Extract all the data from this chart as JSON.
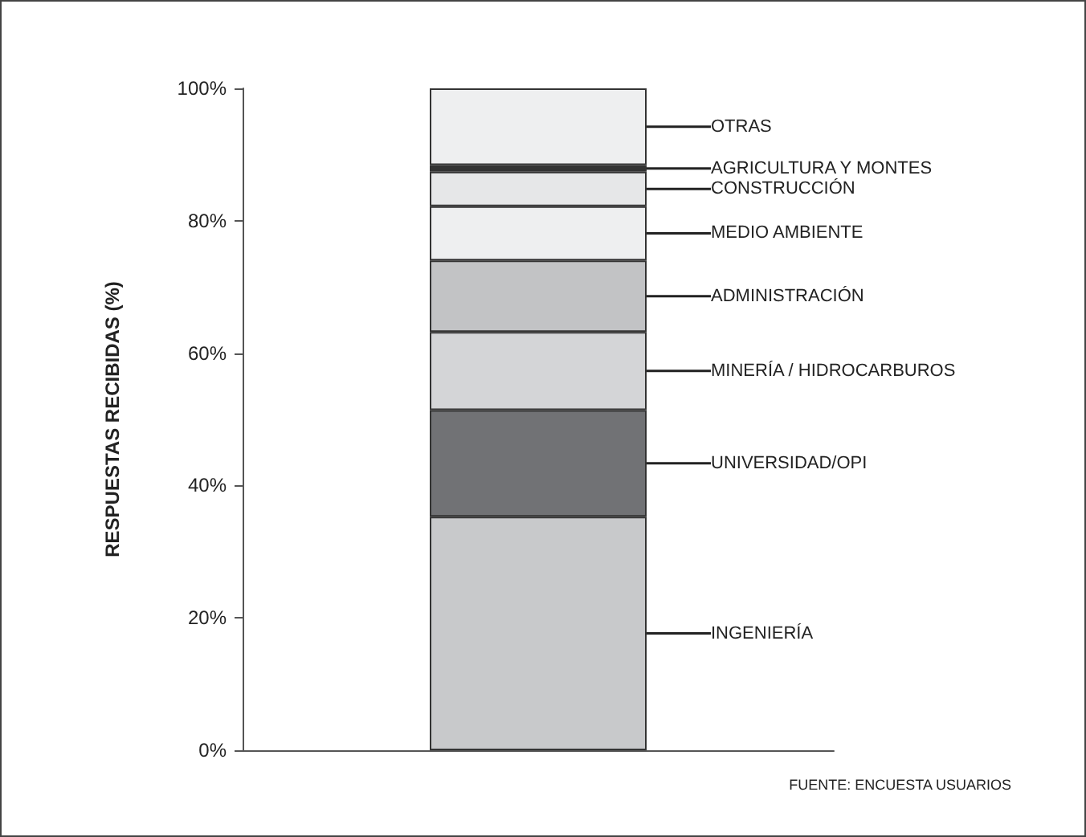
{
  "chart_data": {
    "type": "bar",
    "stacked": true,
    "ylabel": "RESPUESTAS RECIBIDAS (%)",
    "categories": [
      null
    ],
    "series": [
      {
        "name": "INGENIERÍA",
        "color": "#c8c9cb",
        "values": [
          35.3
        ]
      },
      {
        "name": "UNIVERSIDAD/OPI",
        "color": "#717275",
        "values": [
          16.1
        ]
      },
      {
        "name": "MINERÍA / HIDROCARBUROS",
        "color": "#d4d5d7",
        "values": [
          11.8
        ]
      },
      {
        "name": "ADMINISTRACIÓN",
        "color": "#c2c3c5",
        "values": [
          10.8
        ]
      },
      {
        "name": "MEDIO AMBIENTE",
        "color": "#eeeff0",
        "values": [
          8.2
        ]
      },
      {
        "name": "CONSTRUCCIÓN",
        "color": "#e6e7e8",
        "values": [
          5.2
        ]
      },
      {
        "name": "AGRICULTURA Y MONTES",
        "color": "#333333",
        "values": [
          1.0
        ]
      },
      {
        "name": "OTRAS",
        "color": "#eeeff0",
        "values": [
          11.6
        ]
      }
    ],
    "ylim": [
      0,
      100
    ],
    "yticks": [
      {
        "value": 0,
        "label": "0%"
      },
      {
        "value": 20,
        "label": "20%"
      },
      {
        "value": 40,
        "label": "40%"
      },
      {
        "value": 60,
        "label": "60%"
      },
      {
        "value": 80,
        "label": "80%"
      },
      {
        "value": 100,
        "label": "100%"
      }
    ],
    "annotations": [
      "FUENTE: ENCUESTA USUARIOS"
    ],
    "grid": false,
    "legend": false
  }
}
